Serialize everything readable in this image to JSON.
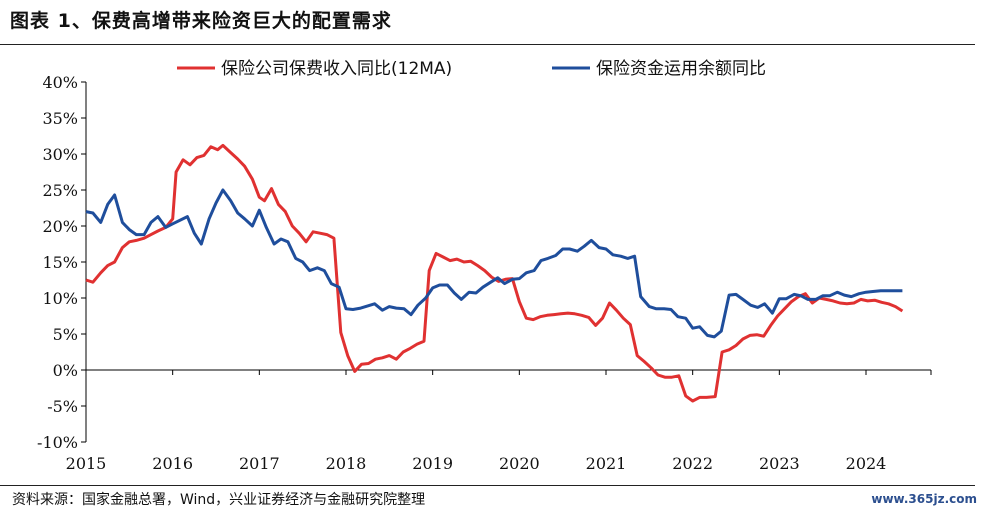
{
  "title": "图表 1、保费高增带来险资巨大的配置需求",
  "source": "资料来源：国家金融总署，Wind，兴业证券经济与金融研究院整理",
  "watermark": "www.365jz.com",
  "chart_data": {
    "type": "line",
    "xlabel": "",
    "ylabel": "",
    "ylim": [
      -10,
      40
    ],
    "ytick_values": [
      -10,
      -5,
      0,
      5,
      10,
      15,
      20,
      25,
      30,
      35,
      40
    ],
    "ytick_labels": [
      "-10%",
      "-5%",
      "0%",
      "5%",
      "10%",
      "15%",
      "20%",
      "25%",
      "30%",
      "35%",
      "40%"
    ],
    "xlim": [
      2015.0,
      2024.75
    ],
    "xtick_values": [
      2015,
      2016,
      2017,
      2018,
      2019,
      2020,
      2021,
      2022,
      2023,
      2024
    ],
    "xtick_labels": [
      "2015",
      "2016",
      "2017",
      "2018",
      "2019",
      "2020",
      "2021",
      "2022",
      "2023",
      "2024"
    ],
    "legend_position": "top",
    "series": [
      {
        "name": "保险公司保费收入同比(12MA)",
        "color": "#e03131",
        "points": [
          [
            2015.0,
            12.5
          ],
          [
            2015.08,
            12.2
          ],
          [
            2015.17,
            13.5
          ],
          [
            2015.25,
            14.5
          ],
          [
            2015.33,
            15.0
          ],
          [
            2015.42,
            17.0
          ],
          [
            2015.5,
            17.8
          ],
          [
            2015.58,
            18.0
          ],
          [
            2015.67,
            18.3
          ],
          [
            2015.75,
            18.8
          ],
          [
            2015.83,
            19.3
          ],
          [
            2015.92,
            19.8
          ],
          [
            2016.0,
            21.0
          ],
          [
            2016.04,
            27.5
          ],
          [
            2016.12,
            29.2
          ],
          [
            2016.2,
            28.5
          ],
          [
            2016.28,
            29.5
          ],
          [
            2016.36,
            29.8
          ],
          [
            2016.44,
            31.0
          ],
          [
            2016.52,
            30.6
          ],
          [
            2016.58,
            31.2
          ],
          [
            2016.67,
            30.2
          ],
          [
            2016.75,
            29.3
          ],
          [
            2016.83,
            28.3
          ],
          [
            2016.92,
            26.5
          ],
          [
            2017.0,
            24.0
          ],
          [
            2017.06,
            23.5
          ],
          [
            2017.14,
            25.2
          ],
          [
            2017.22,
            23.0
          ],
          [
            2017.3,
            22.0
          ],
          [
            2017.38,
            20.0
          ],
          [
            2017.46,
            19.0
          ],
          [
            2017.54,
            17.8
          ],
          [
            2017.62,
            19.2
          ],
          [
            2017.7,
            19.0
          ],
          [
            2017.78,
            18.8
          ],
          [
            2017.86,
            18.3
          ],
          [
            2017.94,
            5.2
          ],
          [
            2018.02,
            2.0
          ],
          [
            2018.1,
            -0.2
          ],
          [
            2018.18,
            0.8
          ],
          [
            2018.26,
            0.9
          ],
          [
            2018.34,
            1.5
          ],
          [
            2018.42,
            1.7
          ],
          [
            2018.5,
            2.0
          ],
          [
            2018.58,
            1.5
          ],
          [
            2018.66,
            2.5
          ],
          [
            2018.74,
            3.0
          ],
          [
            2018.82,
            3.6
          ],
          [
            2018.9,
            4.0
          ],
          [
            2018.96,
            13.8
          ],
          [
            2019.04,
            16.2
          ],
          [
            2019.12,
            15.7
          ],
          [
            2019.2,
            15.2
          ],
          [
            2019.28,
            15.4
          ],
          [
            2019.36,
            15.0
          ],
          [
            2019.44,
            15.1
          ],
          [
            2019.52,
            14.5
          ],
          [
            2019.6,
            13.8
          ],
          [
            2019.68,
            12.9
          ],
          [
            2019.76,
            12.3
          ],
          [
            2019.84,
            12.6
          ],
          [
            2019.92,
            12.7
          ],
          [
            2020.0,
            9.5
          ],
          [
            2020.08,
            7.2
          ],
          [
            2020.16,
            7.0
          ],
          [
            2020.24,
            7.4
          ],
          [
            2020.32,
            7.6
          ],
          [
            2020.4,
            7.7
          ],
          [
            2020.48,
            7.8
          ],
          [
            2020.56,
            7.9
          ],
          [
            2020.64,
            7.8
          ],
          [
            2020.72,
            7.6
          ],
          [
            2020.8,
            7.3
          ],
          [
            2020.88,
            6.2
          ],
          [
            2020.96,
            7.2
          ],
          [
            2021.04,
            9.3
          ],
          [
            2021.12,
            8.3
          ],
          [
            2021.2,
            7.2
          ],
          [
            2021.28,
            6.3
          ],
          [
            2021.36,
            2.0
          ],
          [
            2021.44,
            1.2
          ],
          [
            2021.52,
            0.3
          ],
          [
            2021.6,
            -0.7
          ],
          [
            2021.68,
            -1.0
          ],
          [
            2021.76,
            -1.0
          ],
          [
            2021.84,
            -0.8
          ],
          [
            2021.92,
            -3.6
          ],
          [
            2022.0,
            -4.3
          ],
          [
            2022.08,
            -3.8
          ],
          [
            2022.16,
            -3.8
          ],
          [
            2022.26,
            -3.7
          ],
          [
            2022.34,
            2.5
          ],
          [
            2022.42,
            2.8
          ],
          [
            2022.5,
            3.4
          ],
          [
            2022.58,
            4.3
          ],
          [
            2022.66,
            4.8
          ],
          [
            2022.74,
            4.9
          ],
          [
            2022.82,
            4.7
          ],
          [
            2022.9,
            6.2
          ],
          [
            2022.98,
            7.5
          ],
          [
            2023.06,
            8.5
          ],
          [
            2023.14,
            9.5
          ],
          [
            2023.22,
            10.2
          ],
          [
            2023.3,
            10.6
          ],
          [
            2023.38,
            9.3
          ],
          [
            2023.46,
            10.0
          ],
          [
            2023.54,
            9.8
          ],
          [
            2023.62,
            9.6
          ],
          [
            2023.7,
            9.3
          ],
          [
            2023.78,
            9.2
          ],
          [
            2023.86,
            9.3
          ],
          [
            2023.94,
            9.8
          ],
          [
            2024.02,
            9.6
          ],
          [
            2024.1,
            9.7
          ],
          [
            2024.18,
            9.4
          ],
          [
            2024.26,
            9.2
          ],
          [
            2024.34,
            8.8
          ],
          [
            2024.42,
            8.2
          ]
        ]
      },
      {
        "name": "保险资金运用余额同比",
        "color": "#1f4e9c",
        "points": [
          [
            2015.0,
            22.0
          ],
          [
            2015.08,
            21.8
          ],
          [
            2015.17,
            20.5
          ],
          [
            2015.25,
            23.0
          ],
          [
            2015.33,
            24.3
          ],
          [
            2015.42,
            20.5
          ],
          [
            2015.5,
            19.5
          ],
          [
            2015.58,
            18.8
          ],
          [
            2015.67,
            18.8
          ],
          [
            2015.75,
            20.5
          ],
          [
            2015.83,
            21.3
          ],
          [
            2015.92,
            19.8
          ],
          [
            2016.0,
            20.3
          ],
          [
            2016.17,
            21.3
          ],
          [
            2016.25,
            19.0
          ],
          [
            2016.33,
            17.5
          ],
          [
            2016.42,
            21.0
          ],
          [
            2016.5,
            23.2
          ],
          [
            2016.58,
            25.0
          ],
          [
            2016.67,
            23.5
          ],
          [
            2016.75,
            21.8
          ],
          [
            2016.83,
            21.0
          ],
          [
            2016.92,
            20.0
          ],
          [
            2017.0,
            22.2
          ],
          [
            2017.08,
            19.8
          ],
          [
            2017.17,
            17.5
          ],
          [
            2017.25,
            18.2
          ],
          [
            2017.33,
            17.8
          ],
          [
            2017.42,
            15.5
          ],
          [
            2017.5,
            15.0
          ],
          [
            2017.58,
            13.8
          ],
          [
            2017.67,
            14.2
          ],
          [
            2017.75,
            13.8
          ],
          [
            2017.83,
            12.0
          ],
          [
            2017.92,
            11.5
          ],
          [
            2018.0,
            8.5
          ],
          [
            2018.08,
            8.4
          ],
          [
            2018.17,
            8.6
          ],
          [
            2018.25,
            8.9
          ],
          [
            2018.33,
            9.2
          ],
          [
            2018.42,
            8.3
          ],
          [
            2018.5,
            8.8
          ],
          [
            2018.58,
            8.6
          ],
          [
            2018.67,
            8.5
          ],
          [
            2018.75,
            7.7
          ],
          [
            2018.83,
            9.0
          ],
          [
            2018.92,
            10.0
          ],
          [
            2019.0,
            11.4
          ],
          [
            2019.08,
            11.8
          ],
          [
            2019.17,
            11.8
          ],
          [
            2019.25,
            10.7
          ],
          [
            2019.33,
            9.8
          ],
          [
            2019.42,
            10.8
          ],
          [
            2019.5,
            10.7
          ],
          [
            2019.58,
            11.5
          ],
          [
            2019.67,
            12.2
          ],
          [
            2019.75,
            12.8
          ],
          [
            2019.83,
            12.0
          ],
          [
            2019.92,
            12.6
          ],
          [
            2020.0,
            12.7
          ],
          [
            2020.08,
            13.5
          ],
          [
            2020.17,
            13.8
          ],
          [
            2020.25,
            15.2
          ],
          [
            2020.33,
            15.5
          ],
          [
            2020.42,
            15.9
          ],
          [
            2020.5,
            16.8
          ],
          [
            2020.58,
            16.8
          ],
          [
            2020.67,
            16.5
          ],
          [
            2020.75,
            17.2
          ],
          [
            2020.83,
            18.0
          ],
          [
            2020.92,
            17.0
          ],
          [
            2021.0,
            16.8
          ],
          [
            2021.08,
            16.0
          ],
          [
            2021.17,
            15.8
          ],
          [
            2021.25,
            15.5
          ],
          [
            2021.33,
            15.8
          ],
          [
            2021.4,
            10.2
          ],
          [
            2021.5,
            8.8
          ],
          [
            2021.58,
            8.5
          ],
          [
            2021.67,
            8.5
          ],
          [
            2021.75,
            8.4
          ],
          [
            2021.83,
            7.4
          ],
          [
            2021.92,
            7.2
          ],
          [
            2022.0,
            5.8
          ],
          [
            2022.08,
            6.0
          ],
          [
            2022.17,
            4.8
          ],
          [
            2022.25,
            4.6
          ],
          [
            2022.33,
            5.4
          ],
          [
            2022.42,
            10.4
          ],
          [
            2022.5,
            10.5
          ],
          [
            2022.58,
            9.8
          ],
          [
            2022.67,
            9.0
          ],
          [
            2022.75,
            8.7
          ],
          [
            2022.83,
            9.2
          ],
          [
            2022.92,
            7.9
          ],
          [
            2023.0,
            9.9
          ],
          [
            2023.08,
            9.9
          ],
          [
            2023.17,
            10.5
          ],
          [
            2023.25,
            10.3
          ],
          [
            2023.33,
            9.8
          ],
          [
            2023.42,
            9.8
          ],
          [
            2023.5,
            10.3
          ],
          [
            2023.58,
            10.3
          ],
          [
            2023.67,
            10.8
          ],
          [
            2023.75,
            10.4
          ],
          [
            2023.83,
            10.2
          ],
          [
            2023.92,
            10.6
          ],
          [
            2024.0,
            10.8
          ],
          [
            2024.08,
            10.9
          ],
          [
            2024.17,
            11.0
          ],
          [
            2024.25,
            11.0
          ],
          [
            2024.33,
            11.0
          ],
          [
            2024.42,
            11.0
          ]
        ]
      }
    ]
  }
}
